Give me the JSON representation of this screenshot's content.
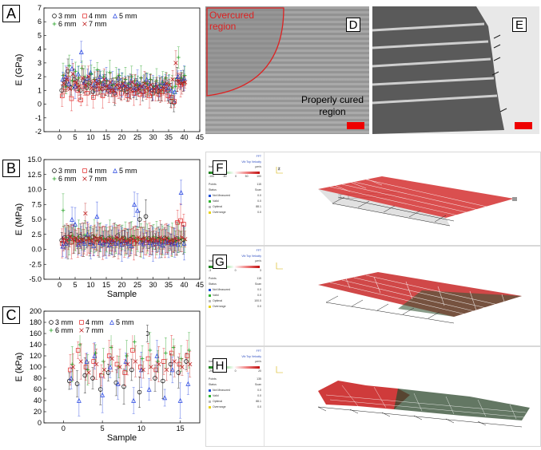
{
  "chart_data": [
    {
      "panel": "A",
      "type": "scatter",
      "ylabel": "E (GPa)",
      "xlabel": "",
      "xlim": [
        -5,
        45
      ],
      "ylim": [
        -2,
        7
      ],
      "xticks": [
        "0",
        "5",
        "10",
        "15",
        "20",
        "25",
        "30",
        "35",
        "40",
        "45"
      ],
      "yticks": [
        "-2",
        "-1",
        "0",
        "1",
        "2",
        "3",
        "4",
        "5",
        "6",
        "7"
      ],
      "legend": [
        "3 mm",
        "4 mm",
        "5 mm",
        "6 mm",
        "7 mm"
      ],
      "series": [
        {
          "name": "3 mm",
          "values": [
            1.0,
            1.6,
            2.4,
            1.2,
            1.8,
            1.4,
            1.0,
            1.7,
            1.2,
            1.5,
            0.9,
            1.3,
            1.6,
            1.1,
            1.4,
            1.0,
            1.2,
            0.8,
            1.5,
            1.1,
            1.2,
            0.9,
            1.3,
            1.0,
            1.1,
            1.2,
            0.9,
            1.4,
            1.1,
            1.0,
            1.2,
            0.9,
            1.1,
            1.3,
            1.0,
            0.2,
            0.1,
            1.8,
            1.6,
            1.7
          ]
        },
        {
          "name": "4 mm",
          "values": [
            0.6,
            1.2,
            1.9,
            0.4,
            1.5,
            1.0,
            0.3,
            1.3,
            0.8,
            1.6,
            0.5,
            1.1,
            1.4,
            0.6,
            1.2,
            0.9,
            1.0,
            0.7,
            1.3,
            0.8,
            1.1,
            0.6,
            1.0,
            0.8,
            1.2,
            0.7,
            0.9,
            1.0,
            0.6,
            0.8,
            1.0,
            0.7,
            0.9,
            1.1,
            0.6,
            0.5,
            0.2,
            1.6,
            1.4,
            1.5
          ]
        },
        {
          "name": "5 mm",
          "values": [
            1.8,
            2.0,
            1.5,
            2.6,
            1.3,
            2.2,
            3.8,
            1.6,
            1.9,
            2.3,
            1.4,
            1.7,
            2.0,
            1.5,
            1.8,
            1.3,
            1.6,
            1.2,
            1.9,
            1.4,
            1.5,
            1.3,
            1.7,
            1.2,
            1.6,
            1.4,
            1.3,
            1.8,
            1.5,
            1.2,
            1.4,
            1.3,
            1.6,
            1.5,
            1.2,
            1.0,
            0.9,
            2.0,
            1.8,
            1.9
          ]
        },
        {
          "name": "6 mm",
          "values": [
            2.1,
            1.3,
            2.8,
            1.7,
            2.4,
            1.9,
            2.6,
            2.0,
            1.5,
            2.2,
            1.8,
            2.5,
            1.6,
            2.0,
            1.7,
            2.3,
            1.4,
            1.9,
            2.1,
            1.6,
            1.8,
            1.5,
            2.0,
            1.7,
            1.4,
            1.9,
            1.6,
            1.5,
            1.8,
            1.3,
            1.7,
            1.4,
            1.6,
            1.9,
            1.5,
            1.2,
            1.3,
            3.4,
            1.9,
            2.1
          ]
        },
        {
          "name": "7 mm",
          "values": [
            1.5,
            1.8,
            1.1,
            2.2,
            1.6,
            1.3,
            1.9,
            1.4,
            2.0,
            1.2,
            1.7,
            1.5,
            1.1,
            1.8,
            1.3,
            1.6,
            1.0,
            1.4,
            1.2,
            1.5,
            1.3,
            1.1,
            1.6,
            1.4,
            1.0,
            1.3,
            1.5,
            1.2,
            1.4,
            1.1,
            1.3,
            1.0,
            1.2,
            1.5,
            1.4,
            1.8,
            3.0,
            1.7,
            1.5,
            1.6
          ]
        }
      ]
    },
    {
      "panel": "B",
      "type": "scatter",
      "ylabel": "E (MPa)",
      "xlabel": "Sample",
      "xlim": [
        -5,
        45
      ],
      "ylim": [
        -5,
        15
      ],
      "xticks": [
        "0",
        "5",
        "10",
        "15",
        "20",
        "25",
        "30",
        "35",
        "40",
        "45"
      ],
      "yticks": [
        "-5.0",
        "-2.5",
        "0.0",
        "2.5",
        "5.0",
        "7.5",
        "10.0",
        "12.5",
        "15.0"
      ],
      "legend": [
        "3 mm",
        "4 mm",
        "5 mm",
        "6 mm",
        "7 mm"
      ],
      "series": [
        {
          "name": "3 mm",
          "values": [
            1.5,
            2.0,
            1.2,
            2.5,
            1.8,
            1.4,
            2.2,
            1.6,
            1.9,
            1.3,
            2.1,
            1.7,
            1.5,
            2.0,
            1.4,
            1.8,
            1.2,
            1.6,
            2.3,
            1.5,
            1.9,
            1.3,
            1.7,
            2.0,
            1.4,
            5.0,
            1.6,
            5.5,
            1.8,
            1.5,
            1.3,
            1.7,
            1.4,
            1.9,
            1.6,
            1.2,
            1.5,
            1.8,
            1.3,
            1.6
          ]
        },
        {
          "name": "4 mm",
          "values": [
            1.0,
            1.4,
            2.0,
            1.2,
            1.6,
            1.1,
            1.5,
            1.3,
            1.8,
            1.0,
            1.4,
            1.2,
            1.7,
            1.1,
            1.5,
            1.3,
            1.0,
            1.6,
            1.2,
            1.4,
            1.1,
            1.5,
            1.3,
            1.0,
            1.7,
            1.2,
            1.4,
            1.1,
            1.6,
            1.3,
            1.0,
            1.5,
            1.2,
            1.4,
            1.1,
            1.3,
            1.0,
            4.5,
            4.8,
            4.2
          ]
        },
        {
          "name": "5 mm",
          "values": [
            0.5,
            1.0,
            1.8,
            5.0,
            4.2,
            0.8,
            1.4,
            1.0,
            2.5,
            1.2,
            0.6,
            5.5,
            1.1,
            0.9,
            1.3,
            0.7,
            1.5,
            1.0,
            1.2,
            0.8,
            1.4,
            1.0,
            0.6,
            7.5,
            6.5,
            1.2,
            0.9,
            1.5,
            1.1,
            0.8,
            1.3,
            1.0,
            0.7,
            1.2,
            1.4,
            0.9,
            1.1,
            0.8,
            9.5,
            1.0
          ]
        },
        {
          "name": "6 mm",
          "values": [
            6.5,
            2.0,
            1.5,
            2.3,
            1.8,
            2.1,
            1.6,
            2.4,
            1.9,
            1.7,
            2.2,
            1.5,
            2.0,
            1.8,
            1.6,
            2.1,
            1.9,
            1.7,
            1.5,
            2.0,
            1.8,
            1.6,
            2.2,
            1.9,
            1.7,
            1.5,
            2.0,
            1.8,
            1.6,
            2.1,
            1.9,
            1.7,
            1.5,
            2.0,
            1.8,
            1.6,
            1.4,
            1.9,
            1.7,
            1.5
          ]
        },
        {
          "name": "7 mm",
          "values": [
            1.8,
            1.5,
            2.1,
            1.7,
            1.9,
            1.4,
            1.6,
            6.0,
            1.8,
            1.5,
            2.0,
            1.7,
            1.9,
            1.4,
            1.6,
            1.8,
            1.5,
            2.0,
            1.7,
            1.9,
            1.4,
            1.6,
            1.8,
            1.5,
            2.0,
            1.7,
            1.9,
            1.4,
            1.6,
            1.8,
            1.5,
            2.0,
            1.7,
            1.9,
            1.4,
            1.6,
            1.8,
            1.5,
            2.0,
            1.7
          ]
        }
      ]
    },
    {
      "panel": "C",
      "type": "scatter",
      "ylabel": "E (kPa)",
      "xlabel": "Sample",
      "xlim": [
        -2.5,
        17.5
      ],
      "ylim": [
        0,
        200
      ],
      "xticks": [
        "0",
        "5",
        "10",
        "15"
      ],
      "yticks": [
        "0",
        "20",
        "40",
        "60",
        "80",
        "100",
        "120",
        "140",
        "160",
        "180",
        "200"
      ],
      "legend": [
        "3 mm",
        "4 mm",
        "5 mm",
        "6 mm",
        "7 mm"
      ],
      "series": [
        {
          "name": "3 mm",
          "values": [
            75,
            70,
            85,
            80,
            60,
            90,
            72,
            65,
            95,
            55,
            160,
            80,
            75,
            105,
            90,
            110
          ]
        },
        {
          "name": "4 mm",
          "values": [
            95,
            130,
            100,
            110,
            85,
            120,
            105,
            90,
            130,
            100,
            115,
            95,
            110,
            125,
            105,
            120
          ]
        },
        {
          "name": "5 mm",
          "values": [
            80,
            40,
            110,
            120,
            50,
            100,
            70,
            110,
            40,
            95,
            60,
            120,
            45,
            95,
            40,
            70
          ]
        },
        {
          "name": "6 mm",
          "values": [
            105,
            140,
            95,
            125,
            110,
            135,
            100,
            120,
            145,
            115,
            130,
            110,
            125,
            135,
            115,
            130
          ]
        },
        {
          "name": "7 mm",
          "values": [
            100,
            110,
            90,
            105,
            95,
            115,
            100,
            105,
            110,
            95,
            100,
            105,
            95,
            110,
            100,
            105
          ]
        }
      ]
    }
  ],
  "panels": {
    "A": "A",
    "B": "B",
    "C": "C",
    "D": "D",
    "E": "E",
    "F": "F",
    "G": "G",
    "H": "H"
  },
  "micrograph": {
    "overcured_label": "Overcured region",
    "properly_cured_label": "Properly cured region"
  },
  "vib_cards": [
    {
      "fft": "FFT",
      "mode_label": "Vib Top Velocity",
      "ind_value": "Ind. Value",
      "unit": "µm/s",
      "cb_ticks": [
        "-100",
        "-50",
        "0",
        "50",
        "100"
      ],
      "points_label": "Points",
      "points_value": "115",
      "status_label": "Status",
      "scan_label": "Scan",
      "statuses": [
        {
          "label": "Not Measured",
          "value": "0.0",
          "color": "#1f4fd8"
        },
        {
          "label": "Valid",
          "value": "0.0",
          "color": "#2fb52f"
        },
        {
          "label": "Optimal",
          "value": "88.1",
          "color": "#bbbbbb"
        },
        {
          "label": "Overrange",
          "value": "0.0",
          "color": "#e8d21a"
        }
      ]
    },
    {
      "fft": "FFT",
      "mode_label": "Vib Top Velocity",
      "ind_value": "Ind. Value",
      "unit": "µm/s",
      "cb_ticks": [
        "-3",
        "0",
        "3"
      ],
      "points_label": "Points",
      "points_value": "115",
      "status_label": "Status",
      "scan_label": "Scan",
      "statuses": [
        {
          "label": "Not Measured",
          "value": "0.0",
          "color": "#1f4fd8"
        },
        {
          "label": "Valid",
          "value": "0.0",
          "color": "#2fb52f"
        },
        {
          "label": "Optimal",
          "value": "100.0",
          "color": "#bbbbbb"
        },
        {
          "label": "Overrange",
          "value": "0.0",
          "color": "#e8d21a"
        }
      ]
    },
    {
      "fft": "FFT",
      "mode_label": "Vib Top Velocity",
      "ind_value": "Ind. Value",
      "unit": "µm/s",
      "cb_ticks": [
        "-20",
        "0",
        "20"
      ],
      "points_label": "Points",
      "points_value": "135",
      "status_label": "Status",
      "scan_label": "Scan",
      "statuses": [
        {
          "label": "Not Measured",
          "value": "0.0",
          "color": "#1f4fd8"
        },
        {
          "label": "Valid",
          "value": "0.0",
          "color": "#2fb52f"
        },
        {
          "label": "Optimal",
          "value": "88.1",
          "color": "#bbbbbb"
        },
        {
          "label": "Overrange",
          "value": "0.0",
          "color": "#e8d21a"
        }
      ]
    }
  ],
  "colors": {
    "s3": "#000000",
    "s4": "#e02020",
    "s5": "#2040e0",
    "s6": "#20a020",
    "s7": "#c02020",
    "scalebar": "#ee0000"
  }
}
